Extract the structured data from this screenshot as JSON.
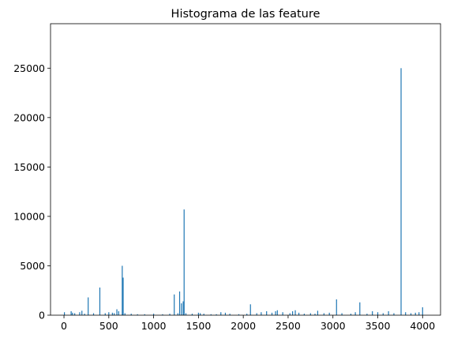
{
  "chart_data": {
    "type": "bar",
    "title": "Histograma de las feature",
    "xlabel": "",
    "ylabel": "",
    "xlim": [
      -150,
      4200
    ],
    "ylim": [
      0,
      29500
    ],
    "x_ticks": [
      0,
      500,
      1000,
      1500,
      2000,
      2500,
      3000,
      3500,
      4000
    ],
    "y_ticks": [
      0,
      5000,
      10000,
      15000,
      20000,
      25000
    ],
    "x_tick_labels": [
      "0",
      "500",
      "1000",
      "1500",
      "2000",
      "2500",
      "3000",
      "3500",
      "4000"
    ],
    "y_tick_labels": [
      "0",
      "5000",
      "10000",
      "15000",
      "20000",
      "25000"
    ],
    "grid": false,
    "bar_color": "#1f77b4",
    "x": [
      5,
      80,
      95,
      120,
      175,
      200,
      230,
      270,
      330,
      400,
      460,
      500,
      540,
      560,
      590,
      610,
      650,
      660,
      680,
      750,
      820,
      900,
      1000,
      1100,
      1180,
      1230,
      1270,
      1290,
      1310,
      1330,
      1340,
      1360,
      1430,
      1500,
      1520,
      1560,
      1640,
      1700,
      1750,
      1800,
      1850,
      1950,
      2040,
      2080,
      2150,
      2200,
      2260,
      2320,
      2360,
      2380,
      2440,
      2520,
      2550,
      2580,
      2620,
      2680,
      2750,
      2800,
      2830,
      2900,
      2960,
      3040,
      3100,
      3200,
      3250,
      3300,
      3380,
      3440,
      3500,
      3560,
      3620,
      3680,
      3760,
      3810,
      3870,
      3920,
      3960,
      4000
    ],
    "values": [
      300,
      400,
      250,
      200,
      300,
      450,
      150,
      1800,
      200,
      2800,
      200,
      300,
      250,
      200,
      600,
      400,
      5000,
      3800,
      200,
      150,
      100,
      100,
      150,
      100,
      150,
      2100,
      200,
      2400,
      1200,
      1400,
      10700,
      200,
      150,
      250,
      200,
      150,
      100,
      100,
      300,
      250,
      150,
      100,
      150,
      1100,
      200,
      300,
      400,
      250,
      400,
      500,
      300,
      200,
      400,
      500,
      250,
      150,
      200,
      150,
      450,
      200,
      250,
      1600,
      200,
      150,
      300,
      1300,
      150,
      400,
      300,
      200,
      400,
      200,
      25000,
      300,
      200,
      250,
      300,
      800
    ]
  }
}
